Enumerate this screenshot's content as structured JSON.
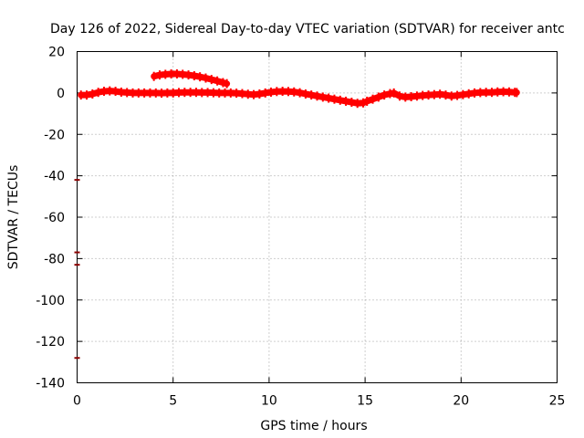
{
  "chart_data": {
    "type": "scatter",
    "title": "Day 126 of 2022, Sidereal Day-to-day VTEC variation (SDTVAR) for receiver antc",
    "xlabel": "GPS time / hours",
    "ylabel": "SDTVAR / TECUs",
    "xlim": [
      0,
      25
    ],
    "ylim": [
      -140,
      20
    ],
    "xticks": [
      0,
      5,
      10,
      15,
      20,
      25
    ],
    "yticks": [
      20,
      0,
      -20,
      -40,
      -60,
      -80,
      -100,
      -120,
      -140
    ],
    "grid": true,
    "color": "#ff0000",
    "outlier_color": "#8b0000",
    "series": [
      {
        "points": [
          [
            0.2,
            -1
          ],
          [
            0.5,
            -1
          ],
          [
            0.8,
            -0.5
          ],
          [
            1.1,
            0.3
          ],
          [
            1.4,
            0.8
          ],
          [
            1.7,
            1
          ],
          [
            2.0,
            0.8
          ],
          [
            2.3,
            0.4
          ],
          [
            2.6,
            0.2
          ],
          [
            2.9,
            0
          ],
          [
            3.2,
            0
          ],
          [
            3.5,
            0
          ],
          [
            3.8,
            0
          ],
          [
            4.1,
            0
          ],
          [
            4.4,
            -0.1
          ],
          [
            4.7,
            0
          ],
          [
            5.0,
            0
          ],
          [
            5.3,
            0.2
          ],
          [
            5.6,
            0.3
          ],
          [
            5.9,
            0.3
          ],
          [
            6.2,
            0.3
          ],
          [
            6.5,
            0.2
          ],
          [
            6.8,
            0.2
          ],
          [
            7.1,
            0.1
          ],
          [
            7.4,
            0
          ],
          [
            7.7,
            0
          ],
          [
            8.0,
            0
          ],
          [
            8.3,
            -0.1
          ],
          [
            8.6,
            -0.3
          ],
          [
            8.9,
            -0.6
          ],
          [
            9.2,
            -0.8
          ],
          [
            9.5,
            -0.5
          ],
          [
            9.8,
            0
          ],
          [
            10.1,
            0.4
          ],
          [
            10.4,
            0.7
          ],
          [
            10.7,
            0.8
          ],
          [
            11.0,
            0.7
          ],
          [
            11.3,
            0.5
          ],
          [
            11.6,
            0.1
          ],
          [
            11.9,
            -0.5
          ],
          [
            12.2,
            -1
          ],
          [
            12.5,
            -1.5
          ],
          [
            12.8,
            -2
          ],
          [
            13.1,
            -2.5
          ],
          [
            13.4,
            -3
          ],
          [
            13.7,
            -3.5
          ],
          [
            14.0,
            -4
          ],
          [
            14.3,
            -4.5
          ],
          [
            14.6,
            -5
          ],
          [
            14.9,
            -4.8
          ],
          [
            15.1,
            -4
          ],
          [
            15.4,
            -3
          ],
          [
            15.7,
            -2
          ],
          [
            16.0,
            -1
          ],
          [
            16.3,
            -0.3
          ],
          [
            16.5,
            0
          ],
          [
            16.8,
            -1.5
          ],
          [
            17.1,
            -2
          ],
          [
            17.4,
            -1.8
          ],
          [
            17.7,
            -1.5
          ],
          [
            18.0,
            -1.2
          ],
          [
            18.3,
            -1
          ],
          [
            18.6,
            -0.8
          ],
          [
            18.9,
            -0.6
          ],
          [
            19.2,
            -1
          ],
          [
            19.5,
            -1.5
          ],
          [
            19.8,
            -1.2
          ],
          [
            20.1,
            -0.8
          ],
          [
            20.4,
            -0.4
          ],
          [
            20.7,
            0
          ],
          [
            21.0,
            0.2
          ],
          [
            21.3,
            0.3
          ],
          [
            21.6,
            0.3
          ],
          [
            21.9,
            0.5
          ],
          [
            22.2,
            0.6
          ],
          [
            22.5,
            0.5
          ],
          [
            22.8,
            0.3
          ],
          [
            22.9,
            0.2
          ]
        ]
      },
      {
        "points": [
          [
            4.0,
            8
          ],
          [
            4.3,
            8.7
          ],
          [
            4.6,
            9
          ],
          [
            4.9,
            9.2
          ],
          [
            5.2,
            9.2
          ],
          [
            5.5,
            9
          ],
          [
            5.8,
            8.7
          ],
          [
            6.1,
            8.3
          ],
          [
            6.4,
            7.8
          ],
          [
            6.7,
            7.2
          ],
          [
            7.0,
            6.5
          ],
          [
            7.3,
            5.8
          ],
          [
            7.6,
            5
          ],
          [
            7.8,
            4.5
          ]
        ]
      },
      {
        "outlier": true,
        "points": [
          [
            0.0,
            -42
          ],
          [
            0.0,
            -77
          ],
          [
            0.0,
            -83
          ],
          [
            0.0,
            -128
          ]
        ]
      }
    ]
  }
}
